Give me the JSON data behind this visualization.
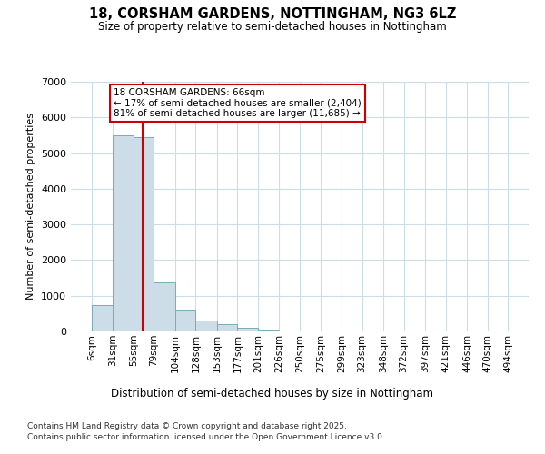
{
  "title1": "18, CORSHAM GARDENS, NOTTINGHAM, NG3 6LZ",
  "title2": "Size of property relative to semi-detached houses in Nottingham",
  "xlabel": "Distribution of semi-detached houses by size in Nottingham",
  "ylabel": "Number of semi-detached properties",
  "footnote1": "Contains HM Land Registry data © Crown copyright and database right 2025.",
  "footnote2": "Contains public sector information licensed under the Open Government Licence v3.0.",
  "property_size": 66,
  "property_label": "18 CORSHAM GARDENS: 66sqm",
  "pct_smaller": 17,
  "count_smaller": 2404,
  "pct_larger": 81,
  "count_larger": 11685,
  "bin_labels": [
    "6sqm",
    "31sqm",
    "55sqm",
    "79sqm",
    "104sqm",
    "128sqm",
    "153sqm",
    "177sqm",
    "201sqm",
    "226sqm",
    "250sqm",
    "275sqm",
    "299sqm",
    "323sqm",
    "348sqm",
    "372sqm",
    "397sqm",
    "421sqm",
    "446sqm",
    "470sqm",
    "494sqm"
  ],
  "bin_edges": [
    6,
    31,
    55,
    79,
    104,
    128,
    153,
    177,
    201,
    226,
    250,
    275,
    299,
    323,
    348,
    372,
    397,
    421,
    446,
    470,
    494
  ],
  "bar_heights": [
    750,
    5500,
    5450,
    1380,
    620,
    295,
    195,
    110,
    60,
    25,
    12,
    5,
    3,
    2,
    1,
    1,
    0,
    0,
    0,
    0
  ],
  "bar_color": "#ccdde8",
  "bar_edge_color": "#7aaabb",
  "redline_color": "#cc0000",
  "grid_color": "#ccdde8",
  "background_color": "#ffffff",
  "ylim": [
    0,
    7000
  ],
  "yticks": [
    0,
    1000,
    2000,
    3000,
    4000,
    5000,
    6000,
    7000
  ]
}
